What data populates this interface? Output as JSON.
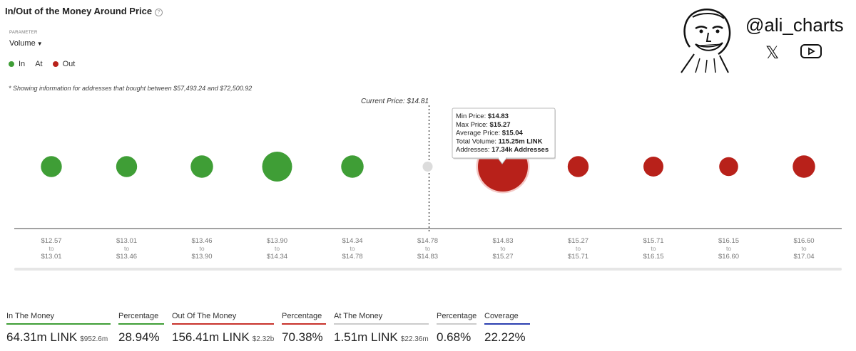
{
  "header": {
    "title": "In/Out of the Money Around Price",
    "help_icon": "question-circle-icon",
    "parameter_label": "PARAMETER",
    "parameter_value": "Volume"
  },
  "legend": [
    {
      "label": "In",
      "color": "#3f9e36"
    },
    {
      "label": "At",
      "color": ""
    },
    {
      "label": "Out",
      "color": "#b8211a"
    }
  ],
  "note": "* Showing information for addresses that bought between $57,493.24 and $72,500.92",
  "brand": {
    "handle": "@ali_charts",
    "icons": [
      "avatar-face-icon",
      "x-logo-icon",
      "youtube-icon"
    ]
  },
  "chart_data": {
    "type": "scatter",
    "current_price_label": "Current Price: $14.81",
    "current_price_index": 5,
    "bins": [
      {
        "from": "$12.57",
        "to": "$13.01",
        "status": "in",
        "size": 0.42
      },
      {
        "from": "$13.01",
        "to": "$13.46",
        "status": "in",
        "size": 0.42
      },
      {
        "from": "$13.46",
        "to": "$13.90",
        "status": "in",
        "size": 0.45
      },
      {
        "from": "$13.90",
        "to": "$14.34",
        "status": "in",
        "size": 0.6
      },
      {
        "from": "$14.34",
        "to": "$14.78",
        "status": "in",
        "size": 0.45
      },
      {
        "from": "$14.78",
        "to": "$14.83",
        "status": "at",
        "size": 0.2
      },
      {
        "from": "$14.83",
        "to": "$15.27",
        "status": "out",
        "size": 1.0
      },
      {
        "from": "$15.27",
        "to": "$15.71",
        "status": "out",
        "size": 0.42
      },
      {
        "from": "$15.71",
        "to": "$16.15",
        "status": "out",
        "size": 0.4
      },
      {
        "from": "$16.15",
        "to": "$16.60",
        "status": "out",
        "size": 0.38
      },
      {
        "from": "$16.60",
        "to": "$17.04",
        "status": "out",
        "size": 0.45
      }
    ],
    "range_connector": "to",
    "tooltip": {
      "bin_index": 6,
      "rows": [
        {
          "label": "Min Price:",
          "value": "$14.83"
        },
        {
          "label": "Max Price:",
          "value": "$15.27"
        },
        {
          "label": "Average Price:",
          "value": "$15.04"
        },
        {
          "label": "Total Volume:",
          "value": "115.25m LINK"
        },
        {
          "label": "Addresses:",
          "value": "17.34k Addresses"
        }
      ]
    },
    "colors": {
      "in": "#3f9e36",
      "at": "#dcdcdc",
      "out": "#b8211a"
    }
  },
  "stats": [
    {
      "label": "In The Money",
      "value": "64.31m LINK",
      "sub": "$952.6m",
      "color": "#3f9e36"
    },
    {
      "label": "Percentage",
      "value": "28.94%",
      "sub": "",
      "color": "#3f9e36"
    },
    {
      "label": "Out Of The Money",
      "value": "156.41m LINK",
      "sub": "$2.32b",
      "color": "#c8322b"
    },
    {
      "label": "Percentage",
      "value": "70.38%",
      "sub": "",
      "color": "#c8322b"
    },
    {
      "label": "At The Money",
      "value": "1.51m LINK",
      "sub": "$22.36m",
      "color": "#cccccc"
    },
    {
      "label": "Percentage",
      "value": "0.68%",
      "sub": "",
      "color": "#cccccc"
    },
    {
      "label": "Coverage",
      "value": "22.22%",
      "sub": "",
      "color": "#2b3fb0"
    }
  ]
}
